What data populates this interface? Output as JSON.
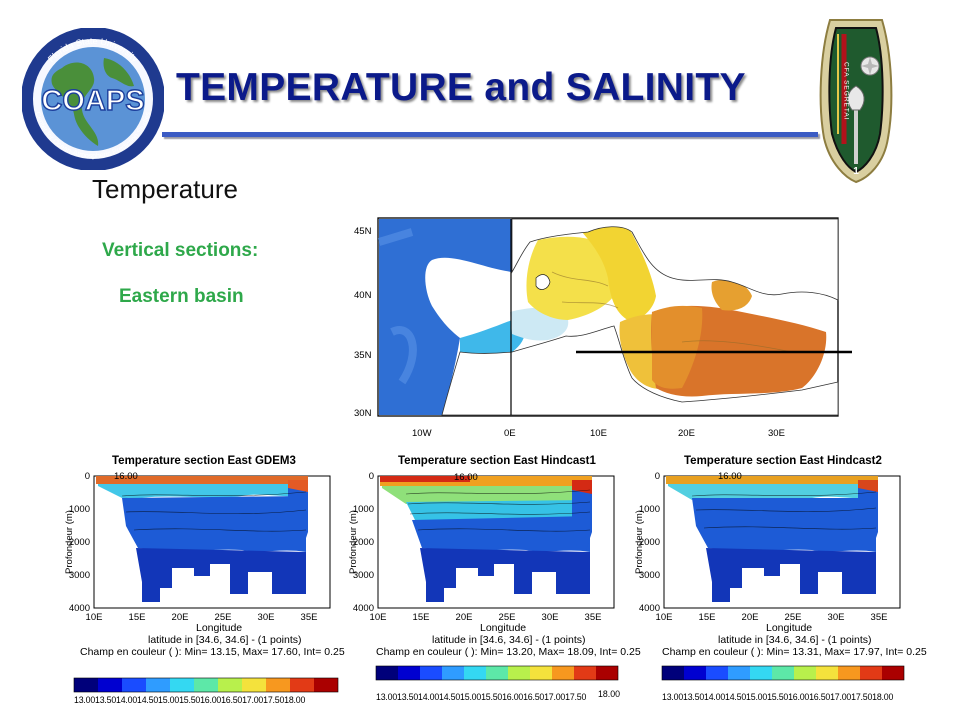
{
  "header": {
    "title": "TEMPERATURE and SALINITY",
    "logo": {
      "text": "COAPS",
      "ring_top": "Florida State University",
      "ring_bottom": "Center for Ocean-Atmospheric Prediction Studies",
      "colors": {
        "ring": "#1f3a8f",
        "text": "#1d3f9c",
        "globe_ocean": "#5b93d6",
        "globe_land": "#4a8f3a"
      }
    },
    "crest": {
      "text": "CFA SEGRETAI",
      "number": "1"
    }
  },
  "subtitle": "Temperature",
  "labels": {
    "vertical_sections": "Vertical sections:",
    "eastern_basin": "Eastern basin"
  },
  "map": {
    "lat_labels": [
      "45N",
      "40N",
      "35N",
      "30N"
    ],
    "lon_labels": [
      "10W",
      "0E",
      "10E",
      "20E",
      "30E"
    ],
    "colors": {
      "atlantic": "#2f6fd4",
      "west_med": "#8fd0f0",
      "central": "#f4e04a",
      "east": "#d9742a",
      "land": "#ffffff"
    }
  },
  "sections": [
    {
      "title": "Temperature section East GDEM3",
      "ylabel": "Profondeur (m)",
      "xlabel": "Longitude",
      "y_ticks": [
        "0",
        "1000",
        "2000",
        "3000",
        "4000"
      ],
      "x_ticks": [
        "10E",
        "15E",
        "20E",
        "25E",
        "30E",
        "35E"
      ],
      "latitude": "latitude in [34.6, 34.6] - (1 points)",
      "champ": "Champ en couleur ( ): Min= 13.15, Max= 17.60, Int= 0.25",
      "contour_label": "16.00",
      "colorbar": "13.0013.5014.0014.5015.0015.5016.0016.5017.0017.5018.00",
      "extra": ""
    },
    {
      "title": "Temperature section East Hindcast1",
      "ylabel": "Profondeur (m)",
      "xlabel": "Longitude",
      "y_ticks": [
        "0",
        "1000",
        "2000",
        "3000",
        "4000"
      ],
      "x_ticks": [
        "10E",
        "15E",
        "20E",
        "25E",
        "30E",
        "35E"
      ],
      "latitude": "latitude in [34.6, 34.6] - (1 points)",
      "champ": "Champ en couleur ( ): Min= 13.20, Max= 18.09, Int= 0.25",
      "contour_label": "16.00",
      "colorbar": "13.0013.5014.0014.5015.0015.5016.0016.5017.0017.50",
      "extra": "18.00"
    },
    {
      "title": "Temperature section East Hindcast2",
      "ylabel": "Profondeur (m)",
      "xlabel": "Longitude",
      "y_ticks": [
        "0",
        "1000",
        "2000",
        "3000",
        "4000"
      ],
      "x_ticks": [
        "10E",
        "15E",
        "20E",
        "25E",
        "30E",
        "35E"
      ],
      "latitude": "latitude in [34.6, 34.6] - (1 points)",
      "champ": "Champ en couleur ( ): Min= 13.31, Max= 17.97, Int= 0.25",
      "contour_label": "16.00",
      "colorbar": "13.0013.5014.0014.5015.0015.5016.0016.5017.0017.5018.00",
      "extra": ""
    }
  ]
}
